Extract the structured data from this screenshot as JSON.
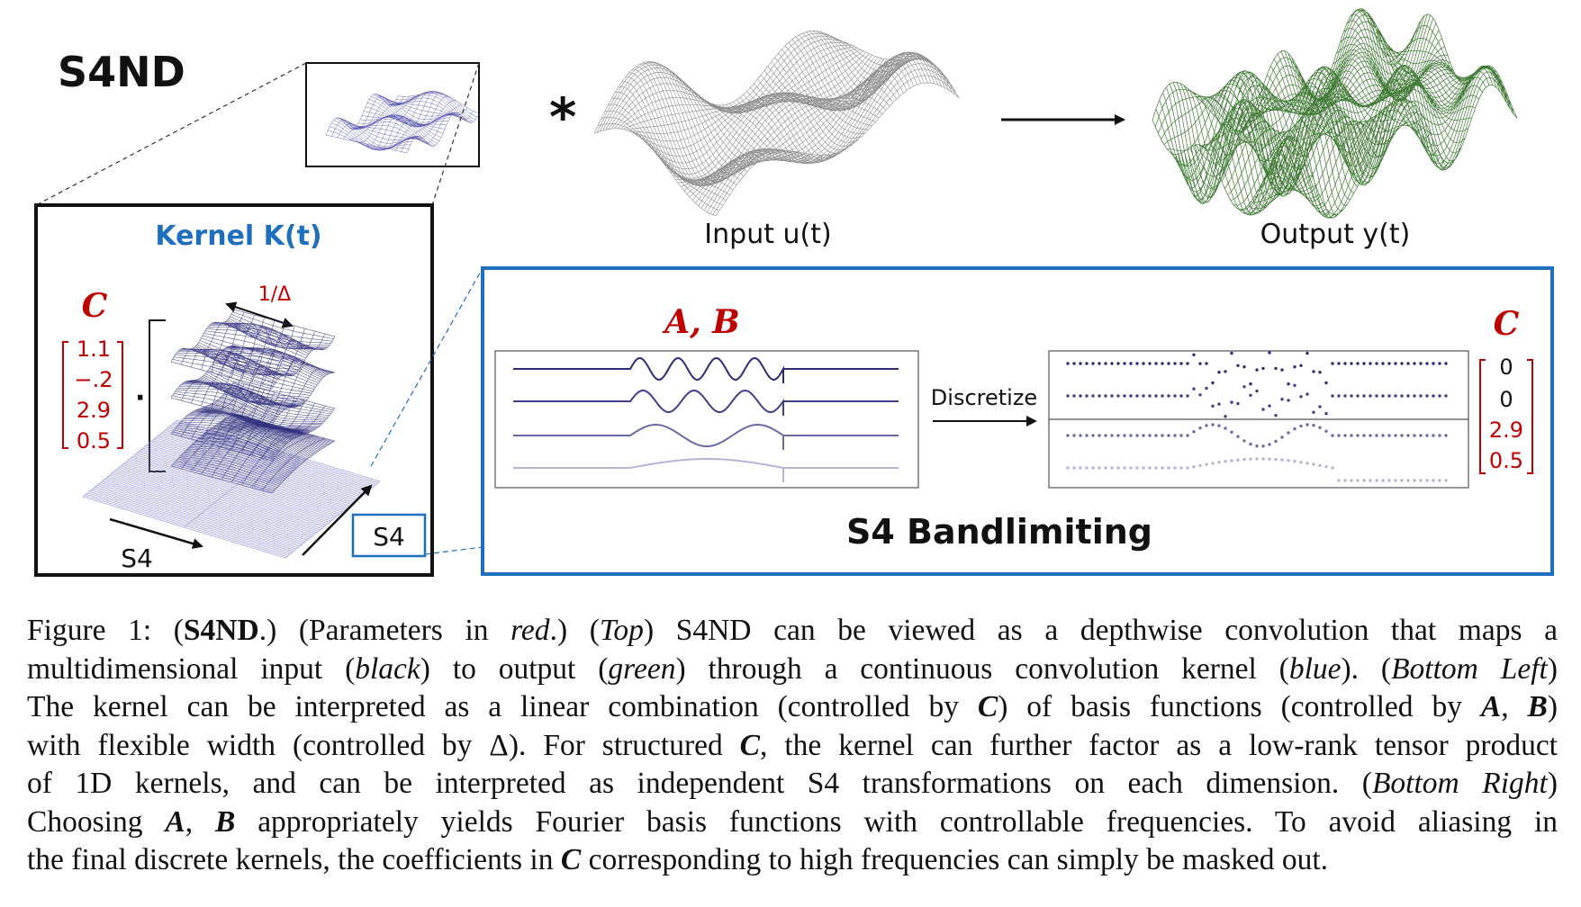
{
  "figure": {
    "title": "S4ND",
    "kernel_title": "Kernel K(t)",
    "input_label": "Input u(t)",
    "output_label": "Output y(t)",
    "conv_symbol": "*",
    "delta_label": "1/Δ",
    "c_label": "C",
    "c_left_values": [
      "1.1",
      "−.2",
      "2.9",
      "0.5"
    ],
    "dot_symbol": "·",
    "s4_axis_label_1": "S4",
    "s4_axis_label_2": "S4",
    "ab_label": "A, B",
    "discretize_label": "Discretize",
    "bandlimit_title": "S4 Bandlimiting",
    "c_right_values": [
      "0",
      "0",
      "2.9",
      "0.5"
    ],
    "colors": {
      "kernel_blue": "#1f6fbf",
      "param_red": "#c00000",
      "input_gray": "#7a7a7a",
      "output_green": "#2b6a1f",
      "basis_navy": "#2c2c7a",
      "surface_lavender": "#8a8ad6"
    }
  },
  "caption": {
    "l1": {
      "a": "Figure 1: (",
      "b": "S4ND",
      "c": ".) (Parameters in ",
      "d": "red",
      "e": ".)  (",
      "f": "Top",
      "g": ") S4ND can be viewed as a depthwise convolution that maps a"
    },
    "l2": {
      "a": "multidimensional input (",
      "b": "black",
      "c": ") to output (",
      "d": "green",
      "e": ") through a continuous convolution kernel (",
      "f": "blue",
      "g": "). (",
      "h": "Bottom Left",
      "i": ")"
    },
    "l3": {
      "a": "The kernel can be interpreted as a linear combination (controlled by ",
      "b": "C",
      "c": ") of basis functions (controlled by ",
      "d": "A",
      "e": ", ",
      "f": "B",
      "g": ")"
    },
    "l4": {
      "a": "with flexible width (controlled by Δ). For structured ",
      "b": "C",
      "c": ", the kernel can further factor as a low-rank tensor product"
    },
    "l5": {
      "a": "of 1D kernels, and can be interpreted as independent S4 transformations on each dimension. (",
      "b": "Bottom Right",
      "c": ")"
    },
    "l6": {
      "a": "Choosing ",
      "b": "A",
      "c": ", ",
      "d": "B",
      "e": " appropriately yields Fourier basis functions with controllable frequencies. To avoid aliasing in"
    },
    "l7": {
      "a": "the final discrete kernels, the coefficients in ",
      "b": "C",
      "c": " corresponding to high frequencies can simply be masked out."
    }
  }
}
